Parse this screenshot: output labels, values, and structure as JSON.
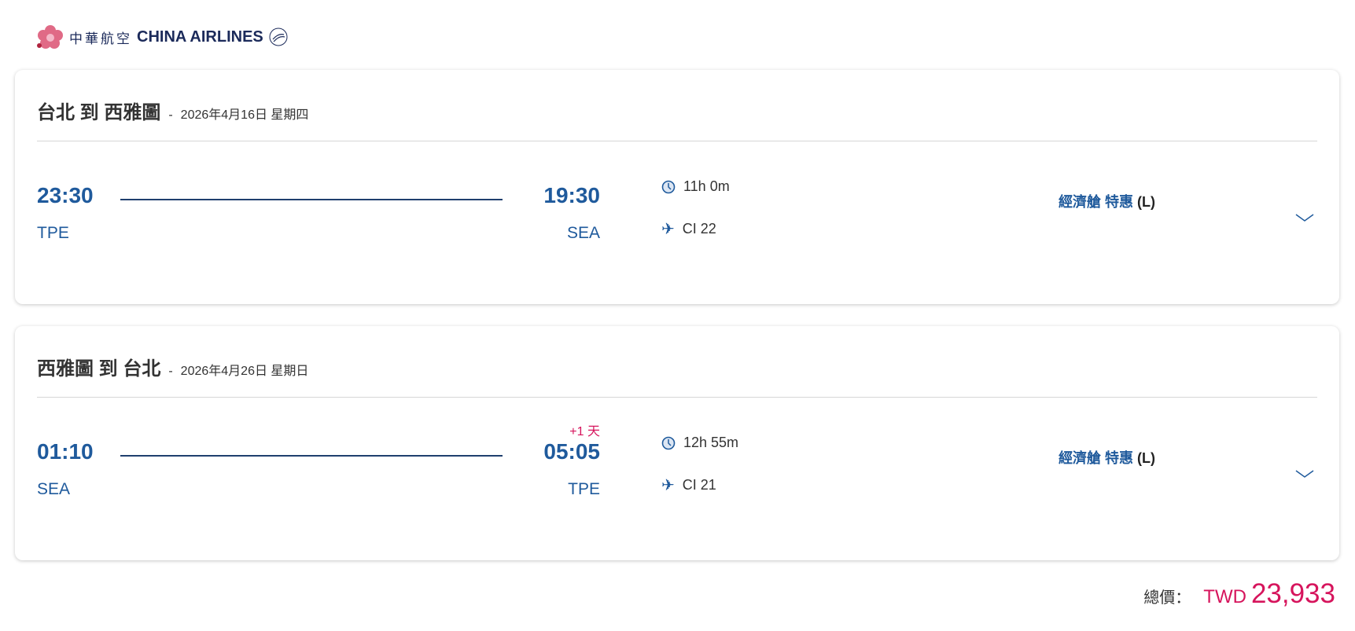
{
  "brand": {
    "name_cn": "中華航空",
    "name_en": "CHINA AIRLINES"
  },
  "colors": {
    "primary": "#1f5a9c",
    "accent": "#d6145c"
  },
  "flights": [
    {
      "route": "台北 到 西雅圖",
      "separator": "-",
      "date": "2026年4月16日 星期四",
      "depart_time": "23:30",
      "depart_code": "TPE",
      "arrive_time": "19:30",
      "arrive_code": "SEA",
      "day_offset": "",
      "duration": "11h 0m",
      "flight_no": "CI 22",
      "cabin": "經濟艙 特惠",
      "fare_class": "(L)"
    },
    {
      "route": "西雅圖 到 台北",
      "separator": "-",
      "date": "2026年4月26日 星期日",
      "depart_time": "01:10",
      "depart_code": "SEA",
      "arrive_time": "05:05",
      "arrive_code": "TPE",
      "day_offset": "+1 天",
      "duration": "12h 55m",
      "flight_no": "CI 21",
      "cabin": "經濟艙 特惠",
      "fare_class": "(L)"
    }
  ],
  "total": {
    "label": "總價：",
    "currency": "TWD",
    "amount": "23,933"
  }
}
